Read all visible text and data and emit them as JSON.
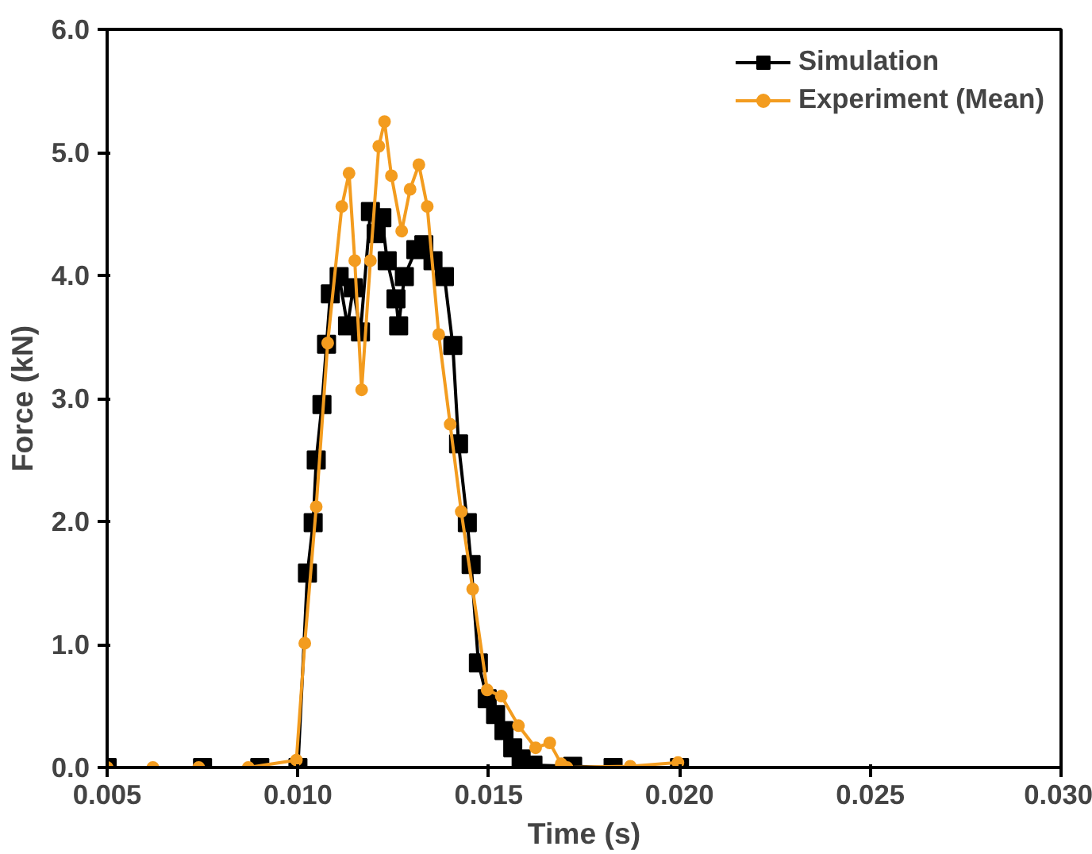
{
  "chart_data": {
    "type": "line",
    "xlabel": "Time (s)",
    "ylabel": "Force (kN)",
    "xlim": [
      0.005,
      0.03
    ],
    "xticks": [
      {
        "value": 0.005,
        "label": "0.005"
      },
      {
        "value": 0.01,
        "label": "0.010"
      },
      {
        "value": 0.015,
        "label": "0.015"
      },
      {
        "value": 0.02,
        "label": "0.020"
      },
      {
        "value": 0.025,
        "label": "0.025"
      },
      {
        "value": 0.03,
        "label": "0.030"
      }
    ],
    "ylim": [
      0,
      6
    ],
    "yticks": [
      {
        "value": 0,
        "label": "0.0"
      },
      {
        "value": 1,
        "label": "1.0"
      },
      {
        "value": 2,
        "label": "2.0"
      },
      {
        "value": 3,
        "label": "3.0"
      },
      {
        "value": 4,
        "label": "4.0"
      },
      {
        "value": 5,
        "label": "5.0"
      },
      {
        "value": 6,
        "label": "6.0"
      }
    ],
    "grid": false,
    "legend": "top right",
    "line_style": "solid",
    "series": [
      {
        "name": "Simulation",
        "color": "#000000",
        "marker": "square",
        "x": [
          0.005,
          0.0075,
          0.009,
          0.01,
          0.01025,
          0.0104,
          0.01048,
          0.01063,
          0.01075,
          0.01085,
          0.01108,
          0.0113,
          0.01145,
          0.01164,
          0.0119,
          0.01205,
          0.0122,
          0.01234,
          0.01257,
          0.01264,
          0.01279,
          0.01309,
          0.0133,
          0.01354,
          0.01384,
          0.01406,
          0.01421,
          0.01444,
          0.01454,
          0.01473,
          0.01496,
          0.01518,
          0.0154,
          0.01563,
          0.01585,
          0.01616,
          0.0172,
          0.01826,
          0.02
        ],
        "values": [
          0,
          0,
          0,
          0,
          1.58,
          1.99,
          2.5,
          2.95,
          3.44,
          3.85,
          3.99,
          3.59,
          3.9,
          3.54,
          4.52,
          4.34,
          4.47,
          4.12,
          3.81,
          3.59,
          3.99,
          4.21,
          4.25,
          4.12,
          3.99,
          3.43,
          2.63,
          1.99,
          1.65,
          0.85,
          0.56,
          0.43,
          0.3,
          0.16,
          0.07,
          0.02,
          0.01,
          0,
          0
        ]
      },
      {
        "name": "Experiment (Mean)",
        "color": "#f39c1f",
        "marker": "circle",
        "x": [
          0.005,
          0.0062,
          0.0074,
          0.0087,
          0.00996,
          0.01018,
          0.01048,
          0.01078,
          0.01115,
          0.01134,
          0.01149,
          0.01167,
          0.0119,
          0.01212,
          0.01227,
          0.01245,
          0.01272,
          0.01294,
          0.01317,
          0.01339,
          0.01369,
          0.01399,
          0.01428,
          0.01458,
          0.01496,
          0.01533,
          0.01578,
          0.01623,
          0.0166,
          0.0169,
          0.01705,
          0.01871,
          0.01996
        ],
        "values": [
          0,
          0,
          0,
          0,
          0.06,
          1.01,
          2.12,
          3.45,
          4.56,
          4.83,
          4.12,
          3.07,
          4.12,
          5.05,
          5.25,
          4.81,
          4.36,
          4.7,
          4.9,
          4.56,
          3.52,
          2.79,
          2.08,
          1.45,
          0.63,
          0.58,
          0.34,
          0.16,
          0.2,
          0.03,
          0,
          0.01,
          0.04
        ]
      }
    ]
  }
}
